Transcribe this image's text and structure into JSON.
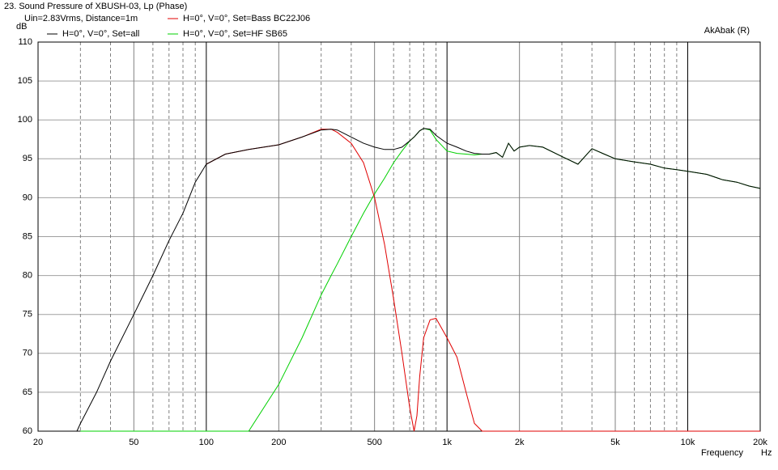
{
  "chart_data": {
    "type": "line",
    "title": "23. Sound Pressure of XBUSH-03, Lp (Phase)",
    "subtitle": "Uin=2.83Vrms, Distance=1m",
    "annotation": "AkAbak (R)",
    "y_label": "dB",
    "x_label": "Frequency",
    "x_unit": "Hz",
    "xscale": "log",
    "grid": true,
    "xlim": [
      20,
      20000
    ],
    "ylim": [
      60,
      110
    ],
    "yticks": [
      60,
      65,
      70,
      75,
      80,
      85,
      90,
      95,
      100,
      105,
      110
    ],
    "xticks": [
      20,
      50,
      100,
      200,
      500,
      {
        "value": 1000,
        "label": "1k"
      },
      {
        "value": 2000,
        "label": "2k"
      },
      {
        "value": 5000,
        "label": "5k"
      },
      {
        "value": 10000,
        "label": "10k"
      },
      {
        "value": 20000,
        "label": "20k"
      }
    ],
    "xgrid": [
      30,
      40,
      60,
      70,
      80,
      90,
      300,
      400,
      600,
      700,
      800,
      900,
      3000,
      4000,
      6000,
      7000,
      8000,
      9000
    ],
    "x": [
      20,
      29,
      30,
      35,
      40,
      50,
      60,
      70,
      80,
      90,
      100,
      120,
      150,
      200,
      250,
      300,
      330,
      350,
      400,
      450,
      500,
      550,
      600,
      650,
      700,
      730,
      750,
      770,
      800,
      850,
      900,
      1000,
      1100,
      1200,
      1300,
      1400,
      1500,
      1600,
      1700,
      1800,
      1900,
      2000,
      2200,
      2500,
      3000,
      3500,
      4000,
      4500,
      5000,
      6000,
      7000,
      8000,
      9000,
      10000,
      12000,
      14000,
      16000,
      18000,
      20000
    ],
    "series": [
      {
        "name": "H=0°, V=0°, Set=all",
        "color": "#000000",
        "values": [
          null,
          60,
          61,
          65,
          69,
          75,
          80,
          84.5,
          88,
          92,
          94.3,
          95.6,
          96.2,
          96.8,
          97.8,
          98.7,
          98.8,
          98.7,
          97.8,
          97,
          96.5,
          96.2,
          96.2,
          96.5,
          97.3,
          97.8,
          98.2,
          98.6,
          98.9,
          98.8,
          98,
          97,
          96.5,
          96,
          95.7,
          95.6,
          95.6,
          95.8,
          95.2,
          97,
          96,
          96.5,
          96.7,
          96.5,
          95.3,
          94.3,
          96.3,
          95.6,
          95,
          94.6,
          94.3,
          93.8,
          93.6,
          93.4,
          93,
          92.3,
          92,
          91.5,
          91.2
        ]
      },
      {
        "name": "H=0°, V=0°, Set=Bass BC22J06",
        "color": "#e00000",
        "values": [
          null,
          null,
          null,
          null,
          null,
          null,
          null,
          null,
          null,
          null,
          94.3,
          95.6,
          96.2,
          96.8,
          97.8,
          98.8,
          98.8,
          98.4,
          97,
          94.5,
          90,
          84,
          77,
          70,
          63,
          60,
          62,
          67,
          72,
          74.3,
          74.5,
          72,
          69.5,
          65,
          61,
          60,
          60,
          60,
          60,
          60,
          60,
          60,
          60,
          60,
          60,
          60,
          60,
          60,
          60,
          60,
          60,
          60,
          60,
          60,
          60,
          60,
          60,
          60,
          60
        ]
      },
      {
        "name": "H=0°, V=0°, Set=HF SB65",
        "color": "#00d000",
        "values": [
          null,
          null,
          60,
          60,
          60,
          60,
          60,
          60,
          60,
          60,
          60,
          60,
          60,
          66,
          72,
          77.5,
          80,
          81.5,
          85,
          88,
          90.5,
          92.5,
          94.5,
          96,
          97.3,
          97.8,
          98.2,
          98.6,
          98.9,
          98.7,
          97.5,
          96,
          95.7,
          95.6,
          95.5,
          95.6,
          95.6,
          95.8,
          95.2,
          97,
          96,
          96.5,
          96.7,
          96.5,
          95.3,
          94.3,
          96.3,
          95.6,
          95,
          94.6,
          94.3,
          93.8,
          93.6,
          93.4,
          93,
          92.3,
          92,
          91.5,
          91.2
        ]
      }
    ]
  }
}
